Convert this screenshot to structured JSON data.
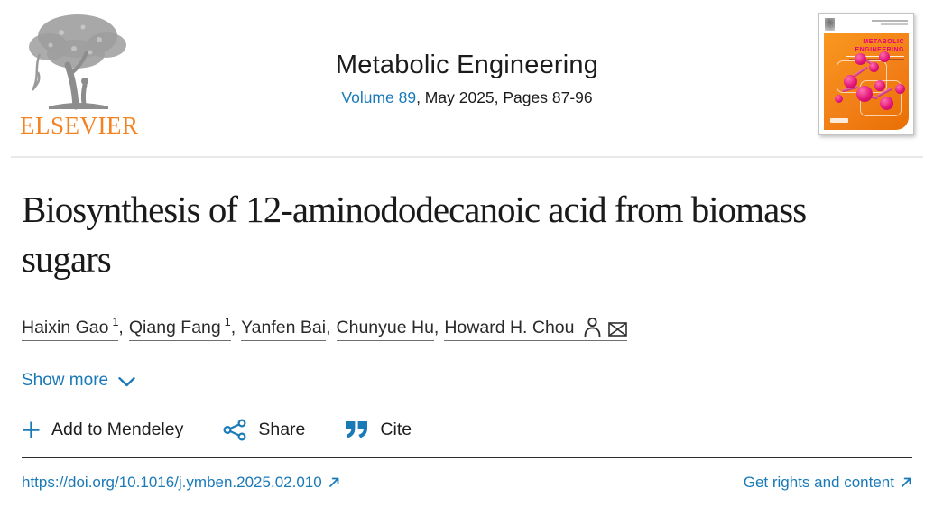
{
  "header": {
    "publisher": "ELSEVIER",
    "journal": {
      "title": "Metabolic Engineering",
      "volume_link": "Volume 89",
      "issue_info": ", May 2025, Pages 87-96"
    },
    "cover": {
      "title_line1": "METABOLIC",
      "title_line2": "ENGINEERING"
    }
  },
  "article": {
    "title": "Biosynthesis of 12-aminododecanoic acid from biomass sugars",
    "authors": [
      {
        "name": "Haixin Gao",
        "sup": "1",
        "corresponding": false
      },
      {
        "name": "Qiang Fang",
        "sup": "1",
        "corresponding": false
      },
      {
        "name": "Yanfen Bai",
        "sup": "",
        "corresponding": false
      },
      {
        "name": "Chunyue Hu",
        "sup": "",
        "corresponding": false
      },
      {
        "name": "Howard H. Chou",
        "sup": "",
        "corresponding": true
      }
    ],
    "author_separator": ", ",
    "show_more_label": "Show more"
  },
  "actions": {
    "mendeley_label": "Add to Mendeley",
    "share_label": "Share",
    "cite_label": "Cite"
  },
  "footer": {
    "doi_link": "https://doi.org/10.1016/j.ymben.2025.02.010",
    "rights_link": "Get rights and content"
  },
  "icons": {
    "chevron_down": "∨",
    "plus": "+",
    "share": "share-nodes",
    "cite": "double-quote",
    "person": "person-outline",
    "envelope": "envelope-x",
    "external_link": "↗"
  },
  "colors": {
    "link_blue": "#1a7ab8",
    "elsevier_orange": "#f58220",
    "cover_magenta": "#e8007d",
    "cover_orange": "#f28018",
    "text_dark": "#1b1b1b",
    "divider_gray": "#e9e9e9",
    "divider_dark": "#2b2b2b"
  }
}
